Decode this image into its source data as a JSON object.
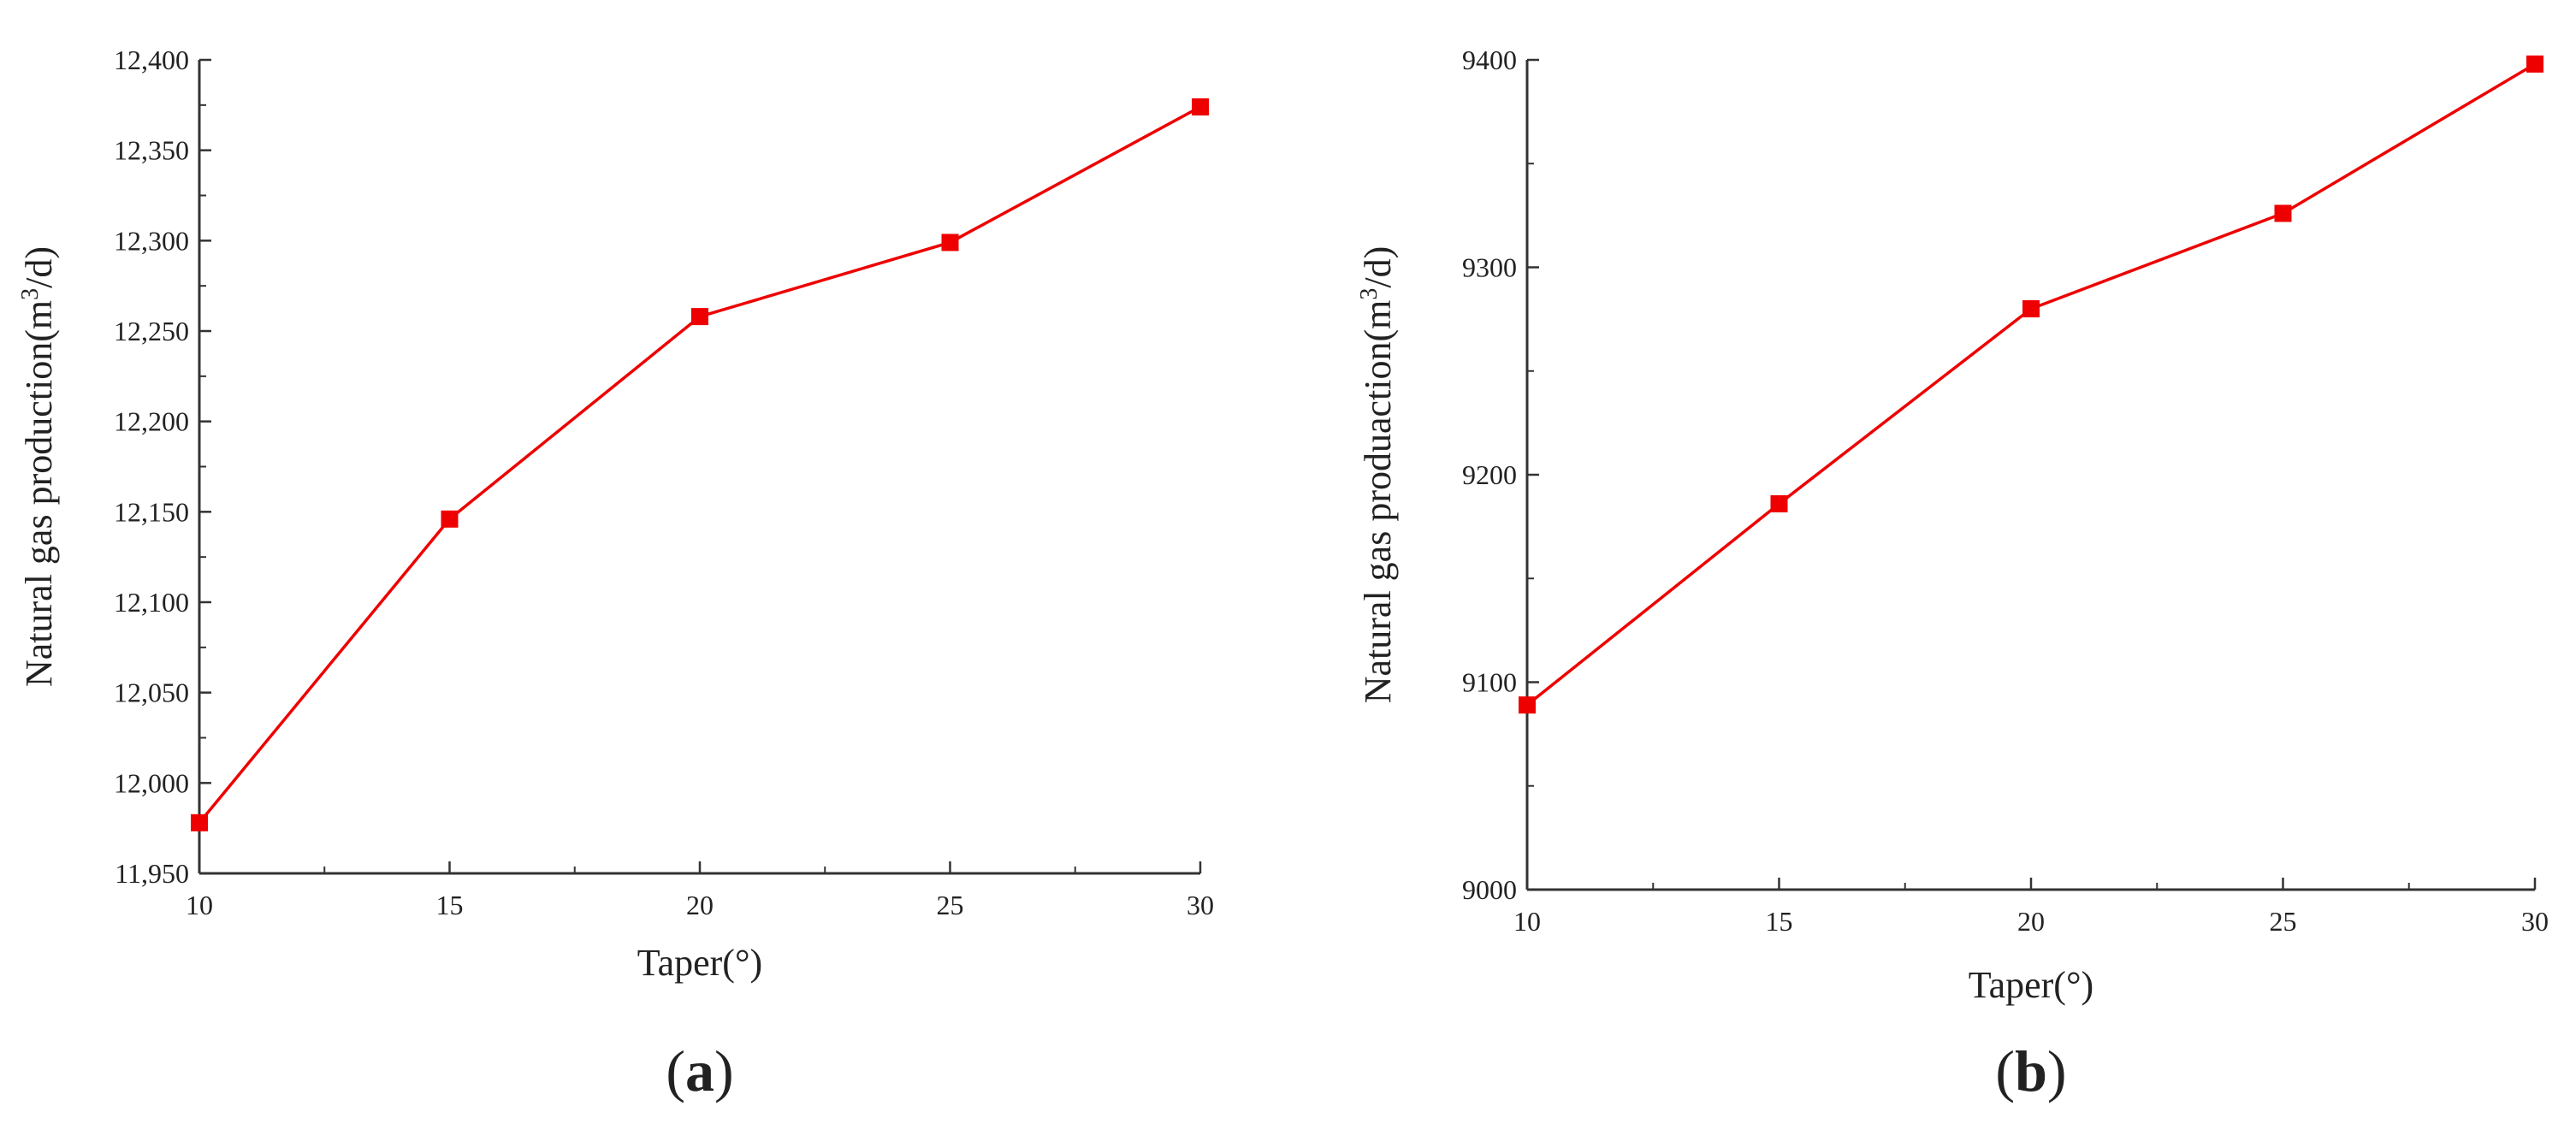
{
  "chart_data": [
    {
      "type": "line",
      "panel_label": "a",
      "x": [
        10,
        15,
        20,
        25,
        30
      ],
      "series": [
        {
          "values": [
            11978,
            12146,
            12258,
            12299,
            12374
          ],
          "color": "#ee0000",
          "marker": "square"
        }
      ],
      "xlabel": "Taper(°)",
      "ylabel_prefix": "Natural gas production(m",
      "ylabel_sup": "3",
      "ylabel_suffix": "/d)",
      "xlim": [
        10,
        30
      ],
      "ylim": [
        11950,
        12400
      ],
      "xticks": [
        10,
        15,
        20,
        25,
        30
      ],
      "xtick_labels": [
        "10",
        "15",
        "20",
        "25",
        "30"
      ],
      "yticks": [
        11950,
        12000,
        12050,
        12100,
        12150,
        12200,
        12250,
        12300,
        12350,
        12400
      ],
      "ytick_labels": [
        "11,950",
        "12,000",
        "12,050",
        "12,100",
        "12,150",
        "12,200",
        "12,250",
        "12,300",
        "12,350",
        "12,400"
      ],
      "grid": false,
      "legend": false
    },
    {
      "type": "line",
      "panel_label": "b",
      "x": [
        10,
        15,
        20,
        25,
        30
      ],
      "series": [
        {
          "values": [
            9089,
            9186,
            9280,
            9326,
            9398
          ],
          "color": "#ee0000",
          "marker": "square"
        }
      ],
      "xlabel": "Taper(°)",
      "ylabel_prefix": "Natural gas produaction(m",
      "ylabel_sup": "3",
      "ylabel_suffix": "/d)",
      "xlim": [
        10,
        30
      ],
      "ylim": [
        9000,
        9400
      ],
      "xticks": [
        10,
        15,
        20,
        25,
        30
      ],
      "xtick_labels": [
        "10",
        "15",
        "20",
        "25",
        "30"
      ],
      "yticks": [
        9000,
        9100,
        9200,
        9300,
        9400
      ],
      "ytick_labels": [
        "9000",
        "9100",
        "9200",
        "9300",
        "9400"
      ],
      "grid": false,
      "legend": false
    }
  ]
}
